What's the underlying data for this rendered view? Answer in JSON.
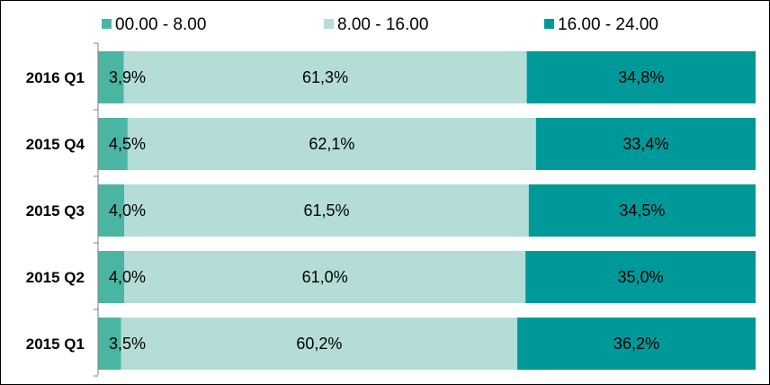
{
  "chart_data": {
    "type": "bar",
    "orientation": "horizontal",
    "stacked": "percent",
    "categories": [
      "2016 Q1",
      "2015 Q4",
      "2015 Q3",
      "2015 Q2",
      "2015 Q1"
    ],
    "series": [
      {
        "name": "00.00 - 8.00",
        "values": [
          3.9,
          4.5,
          4.0,
          4.0,
          3.5
        ],
        "labels": [
          "3,9%",
          "4,5%",
          "4,0%",
          "4,0%",
          "3,5%"
        ],
        "color": "#4BB5A4"
      },
      {
        "name": "8.00 - 16.00",
        "values": [
          61.3,
          62.1,
          61.5,
          61.0,
          60.2
        ],
        "labels": [
          "61,3%",
          "62,1%",
          "61,5%",
          "61,0%",
          "60,2%"
        ],
        "color": "#B3DDD6"
      },
      {
        "name": "16.00 - 24.00",
        "values": [
          34.8,
          33.4,
          34.5,
          35.0,
          36.2
        ],
        "labels": [
          "34,8%",
          "33,4%",
          "34,5%",
          "35,0%",
          "36,2%"
        ],
        "color": "#00999A"
      }
    ],
    "xlim": [
      0,
      100
    ],
    "legend": "top",
    "grid": false
  }
}
